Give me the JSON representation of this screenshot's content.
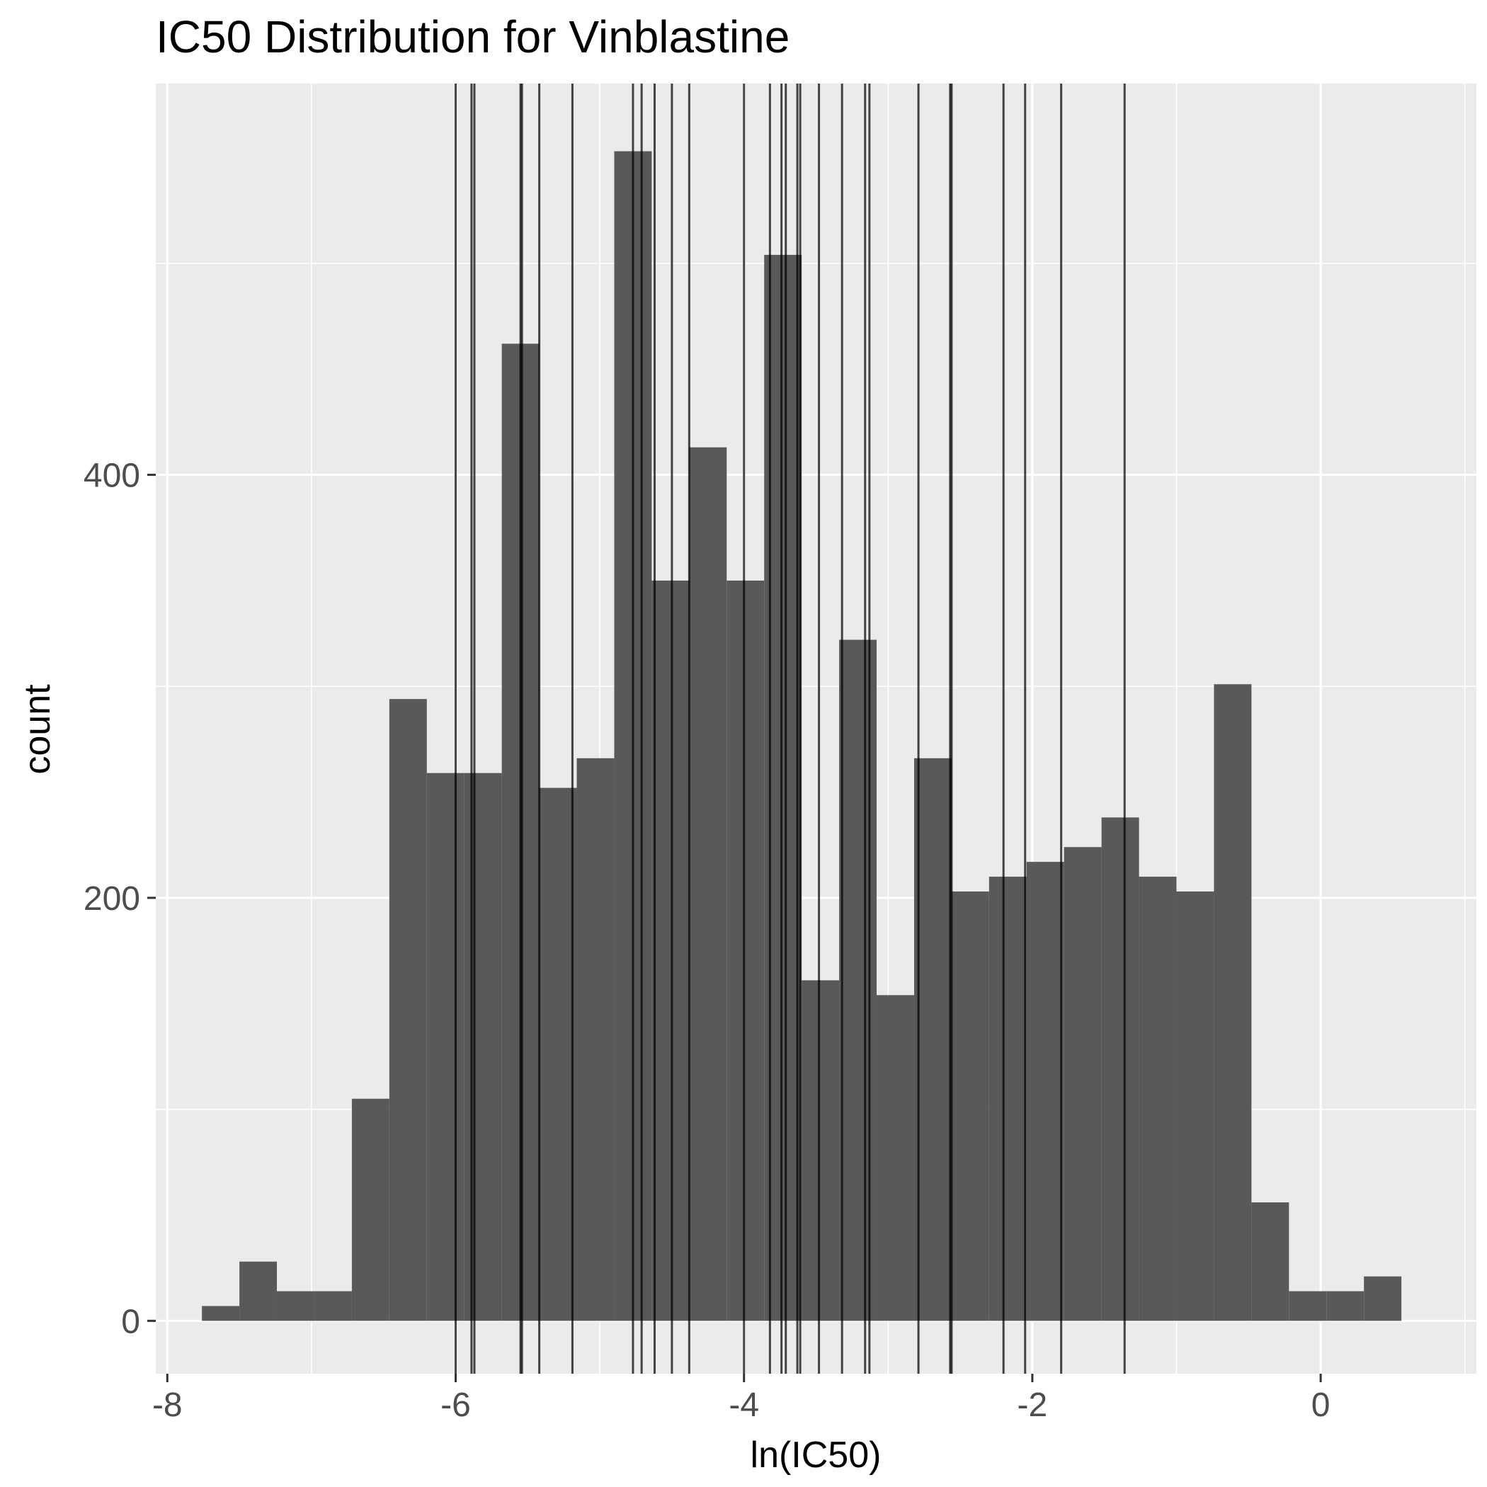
{
  "chart_data": {
    "type": "bar",
    "title": "IC50 Distribution for Vinblastine",
    "xlabel": "ln(IC50)",
    "ylabel": "count",
    "xlim": [
      -8.08,
      1.08
    ],
    "ylim": [
      -25,
      585
    ],
    "x_ticks": [
      -8,
      -6,
      -4,
      -2,
      0
    ],
    "x_tick_labels": [
      "-8",
      "-6",
      "-4",
      "-2",
      "0"
    ],
    "y_ticks": [
      0,
      200,
      400
    ],
    "y_tick_labels": [
      "0",
      "200",
      "400"
    ],
    "grid": true,
    "bins": [
      {
        "x0": -7.76,
        "x1": -7.5,
        "count": 7
      },
      {
        "x0": -7.5,
        "x1": -7.24,
        "count": 28
      },
      {
        "x0": -7.24,
        "x1": -6.98,
        "count": 14
      },
      {
        "x0": -6.98,
        "x1": -6.72,
        "count": 14
      },
      {
        "x0": -6.72,
        "x1": -6.46,
        "count": 105
      },
      {
        "x0": -6.46,
        "x1": -6.2,
        "count": 294
      },
      {
        "x0": -6.2,
        "x1": -5.94,
        "count": 259
      },
      {
        "x0": -5.94,
        "x1": -5.68,
        "count": 259
      },
      {
        "x0": -5.68,
        "x1": -5.42,
        "count": 462
      },
      {
        "x0": -5.42,
        "x1": -5.16,
        "count": 252
      },
      {
        "x0": -5.16,
        "x1": -4.9,
        "count": 266
      },
      {
        "x0": -4.9,
        "x1": -4.64,
        "count": 553
      },
      {
        "x0": -4.64,
        "x1": -4.38,
        "count": 350
      },
      {
        "x0": -4.38,
        "x1": -4.12,
        "count": 413
      },
      {
        "x0": -4.12,
        "x1": -3.86,
        "count": 350
      },
      {
        "x0": -3.86,
        "x1": -3.6,
        "count": 504
      },
      {
        "x0": -3.6,
        "x1": -3.34,
        "count": 161
      },
      {
        "x0": -3.34,
        "x1": -3.08,
        "count": 322
      },
      {
        "x0": -3.08,
        "x1": -2.82,
        "count": 154
      },
      {
        "x0": -2.82,
        "x1": -2.56,
        "count": 266
      },
      {
        "x0": -2.56,
        "x1": -2.3,
        "count": 203
      },
      {
        "x0": -2.3,
        "x1": -2.04,
        "count": 210
      },
      {
        "x0": -2.04,
        "x1": -1.78,
        "count": 217
      },
      {
        "x0": -1.78,
        "x1": -1.52,
        "count": 224
      },
      {
        "x0": -1.52,
        "x1": -1.26,
        "count": 238
      },
      {
        "x0": -1.26,
        "x1": -1.0,
        "count": 210
      },
      {
        "x0": -1.0,
        "x1": -0.74,
        "count": 203
      },
      {
        "x0": -0.74,
        "x1": -0.48,
        "count": 301
      },
      {
        "x0": -0.48,
        "x1": -0.22,
        "count": 56
      },
      {
        "x0": -0.22,
        "x1": 0.04,
        "count": 14
      },
      {
        "x0": 0.04,
        "x1": 0.3,
        "count": 14
      },
      {
        "x0": 0.3,
        "x1": 0.56,
        "count": 21
      }
    ],
    "vlines": [
      -6.0,
      -5.89,
      -5.87,
      -5.55,
      -5.54,
      -5.42,
      -5.19,
      -4.77,
      -4.71,
      -4.62,
      -4.5,
      -4.38,
      -4.0,
      -3.82,
      -3.74,
      -3.71,
      -3.63,
      -3.61,
      -3.48,
      -3.32,
      -3.16,
      -3.13,
      -2.79,
      -2.57,
      -2.56,
      -2.2,
      -2.05,
      -1.8,
      -1.36
    ],
    "colors": {
      "panel": "#ebebeb",
      "grid_major": "#ffffff",
      "bar": "#595959",
      "vline": "#000000",
      "tick": "#333333"
    }
  }
}
